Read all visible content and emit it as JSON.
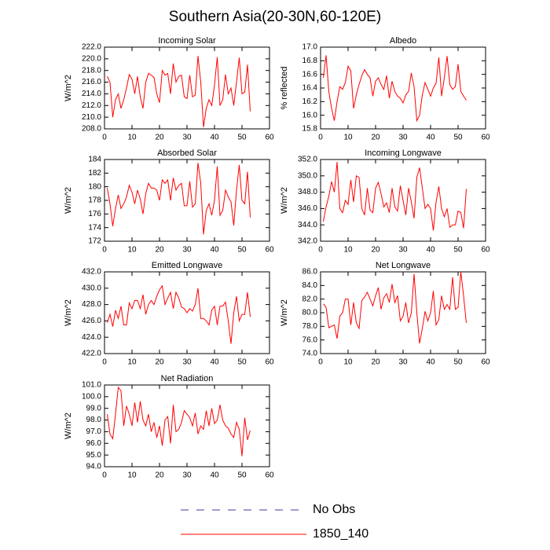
{
  "title": "Southern Asia(20-30N,60-120E)",
  "legend": [
    {
      "name": "No Obs",
      "color": "#3a3aa8",
      "dash": true
    },
    {
      "name": "1850_140",
      "color": "#ff0000",
      "dash": false
    }
  ],
  "chart_data": [
    {
      "type": "line",
      "title": "Incoming Solar",
      "ylabel": "W/m^2",
      "x": [
        1,
        2,
        3,
        4,
        5,
        6,
        7,
        8,
        9,
        10,
        11,
        12,
        13,
        14,
        15,
        16,
        17,
        18,
        19,
        20,
        21,
        22,
        23,
        24,
        25,
        26,
        27,
        28,
        29,
        30,
        31,
        32,
        33,
        34,
        35,
        36,
        37,
        38,
        39,
        40,
        41,
        42,
        43,
        44,
        45,
        46,
        47,
        48,
        49,
        50,
        51,
        52,
        53
      ],
      "values": [
        217.0,
        216.0,
        210.0,
        213.0,
        214.0,
        211.5,
        213.0,
        215.0,
        217.3,
        216.5,
        214.0,
        217.0,
        213.5,
        211.5,
        216.0,
        217.5,
        217.2,
        216.8,
        214.0,
        212.5,
        218.0,
        217.2,
        217.5,
        214.0,
        219.2,
        216.0,
        217.0,
        217.2,
        213.5,
        213.2,
        217.2,
        213.5,
        213.8,
        220.5,
        216.0,
        208.3,
        211.5,
        213.0,
        212.0,
        215.5,
        220.3,
        212.0,
        213.0,
        217.3,
        214.0,
        215.0,
        212.0,
        216.0,
        220.2,
        214.0,
        214.3,
        219.0,
        211.0
      ],
      "color": "#ff0000",
      "xlim": [
        0,
        60
      ],
      "xticks": [
        0,
        10,
        20,
        30,
        40,
        50,
        60
      ],
      "ylim": [
        208,
        222
      ],
      "yticks": [
        {
          "value": 208,
          "label": "208.0"
        },
        {
          "value": 210,
          "label": "210.0"
        },
        {
          "value": 212,
          "label": "212.0"
        },
        {
          "value": 214,
          "label": "214.0"
        },
        {
          "value": 216,
          "label": "216.0"
        },
        {
          "value": 218,
          "label": "218.0"
        },
        {
          "value": 220,
          "label": "220.0"
        },
        {
          "value": 222,
          "label": "222.0"
        }
      ]
    },
    {
      "type": "line",
      "title": "Albedo",
      "ylabel": "% reflected",
      "x": [
        1,
        2,
        3,
        4,
        5,
        6,
        7,
        8,
        9,
        10,
        11,
        12,
        13,
        14,
        15,
        16,
        17,
        18,
        19,
        20,
        21,
        22,
        23,
        24,
        25,
        26,
        27,
        28,
        29,
        30,
        31,
        32,
        33,
        34,
        35,
        36,
        37,
        38,
        39,
        40,
        41,
        42,
        43,
        44,
        45,
        46,
        47,
        48,
        49,
        50,
        51,
        52,
        53
      ],
      "values": [
        16.55,
        16.88,
        16.35,
        16.1,
        15.92,
        16.2,
        16.42,
        16.38,
        16.48,
        16.72,
        16.65,
        16.1,
        16.3,
        16.45,
        16.58,
        16.67,
        16.6,
        16.55,
        16.28,
        16.5,
        16.55,
        16.45,
        16.38,
        16.58,
        16.25,
        16.5,
        16.35,
        16.28,
        16.25,
        16.18,
        16.3,
        16.35,
        16.62,
        16.42,
        15.92,
        16.0,
        16.3,
        16.48,
        16.38,
        16.28,
        16.4,
        16.47,
        16.85,
        16.28,
        16.55,
        16.87,
        16.45,
        16.38,
        16.42,
        16.75,
        16.35,
        16.28,
        16.22
      ],
      "color": "#ff0000",
      "xlim": [
        0,
        60
      ],
      "xticks": [
        0,
        10,
        20,
        30,
        40,
        50,
        60
      ],
      "ylim": [
        15.8,
        17.0
      ],
      "yticks": [
        15.8,
        {
          "value": 16.0,
          "label": "16.0"
        },
        16.2,
        16.4,
        16.6,
        16.8,
        {
          "value": 17.0,
          "label": "17.0"
        }
      ]
    },
    {
      "type": "line",
      "title": "Absorbed Solar",
      "ylabel": "W/m^2",
      "x": [
        1,
        2,
        3,
        4,
        5,
        6,
        7,
        8,
        9,
        10,
        11,
        12,
        13,
        14,
        15,
        16,
        17,
        18,
        19,
        20,
        21,
        22,
        23,
        24,
        25,
        26,
        27,
        28,
        29,
        30,
        31,
        32,
        33,
        34,
        35,
        36,
        37,
        38,
        39,
        40,
        41,
        42,
        43,
        44,
        45,
        46,
        47,
        48,
        49,
        50,
        51,
        52,
        53
      ],
      "values": [
        179.8,
        177.5,
        174.2,
        176.8,
        178.8,
        176.8,
        177.5,
        178.5,
        180.2,
        179.2,
        177.5,
        179.5,
        178.2,
        176.0,
        179.0,
        180.5,
        179.8,
        179.8,
        179.5,
        178.0,
        181.0,
        180.5,
        181.0,
        178.0,
        181.3,
        179.5,
        180.2,
        180.5,
        177.2,
        177.2,
        180.8,
        177.0,
        177.5,
        183.5,
        180.5,
        173.0,
        176.5,
        177.5,
        175.8,
        178.0,
        183.0,
        175.8,
        176.5,
        179.5,
        178.5,
        177.8,
        174.3,
        179.5,
        183.2,
        178.0,
        177.5,
        182.2,
        175.5
      ],
      "color": "#ff0000",
      "xlim": [
        0,
        60
      ],
      "xticks": [
        0,
        10,
        20,
        30,
        40,
        50,
        60
      ],
      "ylim": [
        172,
        184
      ],
      "yticks": [
        172,
        174,
        176,
        178,
        180,
        182,
        184
      ]
    },
    {
      "type": "line",
      "title": "Incoming Longwave",
      "ylabel": "W/m^2",
      "x": [
        1,
        2,
        3,
        4,
        5,
        6,
        7,
        8,
        9,
        10,
        11,
        12,
        13,
        14,
        15,
        16,
        17,
        18,
        19,
        20,
        21,
        22,
        23,
        24,
        25,
        26,
        27,
        28,
        29,
        30,
        31,
        32,
        33,
        34,
        35,
        36,
        37,
        38,
        39,
        40,
        41,
        42,
        43,
        44,
        45,
        46,
        47,
        48,
        49,
        50,
        51,
        52,
        53
      ],
      "values": [
        344.4,
        346.2,
        347.5,
        349.3,
        348.0,
        351.7,
        346.0,
        345.5,
        347.0,
        346.5,
        349.5,
        346.8,
        350.0,
        349.8,
        346.0,
        345.2,
        348.5,
        345.8,
        345.5,
        348.5,
        349.2,
        347.8,
        346.2,
        346.7,
        345.5,
        348.5,
        346.2,
        345.7,
        348.8,
        347.0,
        345.2,
        348.5,
        346.8,
        344.8,
        349.8,
        351.0,
        348.5,
        346.0,
        346.5,
        346.0,
        343.3,
        346.8,
        348.7,
        346.0,
        345.0,
        346.0,
        343.7,
        344.0,
        344.0,
        345.7,
        345.5,
        343.6,
        348.4
      ],
      "color": "#ff0000",
      "xlim": [
        0,
        60
      ],
      "xticks": [
        0,
        10,
        20,
        30,
        40,
        50,
        60
      ],
      "ylim": [
        342,
        352
      ],
      "yticks": [
        {
          "value": 342,
          "label": "342.0"
        },
        {
          "value": 344,
          "label": "344.0"
        },
        {
          "value": 346,
          "label": "346.0"
        },
        {
          "value": 348,
          "label": "348.0"
        },
        {
          "value": 350,
          "label": "350.0"
        },
        {
          "value": 352,
          "label": "352.0"
        }
      ]
    },
    {
      "type": "line",
      "title": "Emitted Longwave",
      "ylabel": "W/m^2",
      "x": [
        1,
        2,
        3,
        4,
        5,
        6,
        7,
        8,
        9,
        10,
        11,
        12,
        13,
        14,
        15,
        16,
        17,
        18,
        19,
        20,
        21,
        22,
        23,
        24,
        25,
        26,
        27,
        28,
        29,
        30,
        31,
        32,
        33,
        34,
        35,
        36,
        37,
        38,
        39,
        40,
        41,
        42,
        43,
        44,
        45,
        46,
        47,
        48,
        49,
        50,
        51,
        52,
        53
      ],
      "values": [
        425.8,
        426.8,
        425.3,
        427.3,
        426.3,
        427.8,
        425.5,
        425.5,
        428.2,
        427.5,
        428.5,
        428.5,
        427.5,
        429.2,
        426.8,
        428.0,
        428.5,
        428.0,
        429.0,
        429.8,
        430.3,
        428.0,
        428.8,
        429.5,
        427.5,
        429.5,
        428.8,
        427.7,
        427.5,
        427.0,
        427.5,
        427.2,
        428.0,
        430.0,
        426.3,
        426.3,
        426.0,
        425.5,
        427.3,
        427.8,
        425.5,
        427.8,
        427.8,
        428.3,
        426.0,
        423.2,
        427.0,
        429.0,
        426.0,
        426.8,
        426.8,
        429.5,
        426.5
      ],
      "color": "#ff0000",
      "xlim": [
        0,
        60
      ],
      "xticks": [
        0,
        10,
        20,
        30,
        40,
        50,
        60
      ],
      "ylim": [
        422,
        432
      ],
      "yticks": [
        {
          "value": 422,
          "label": "422.0"
        },
        {
          "value": 424,
          "label": "424.0"
        },
        {
          "value": 426,
          "label": "426.0"
        },
        {
          "value": 428,
          "label": "428.0"
        },
        {
          "value": 430,
          "label": "430.0"
        },
        {
          "value": 432,
          "label": "432.0"
        }
      ]
    },
    {
      "type": "line",
      "title": "Net Longwave",
      "ylabel": "W/m^2",
      "x": [
        1,
        2,
        3,
        4,
        5,
        6,
        7,
        8,
        9,
        10,
        11,
        12,
        13,
        14,
        15,
        16,
        17,
        18,
        19,
        20,
        21,
        22,
        23,
        24,
        25,
        26,
        27,
        28,
        29,
        30,
        31,
        32,
        33,
        34,
        35,
        36,
        37,
        38,
        39,
        40,
        41,
        42,
        43,
        44,
        45,
        46,
        47,
        48,
        49,
        50,
        51,
        52,
        53
      ],
      "values": [
        81.3,
        80.8,
        77.8,
        78.0,
        78.2,
        76.2,
        79.5,
        80.0,
        82.0,
        82.0,
        78.2,
        81.5,
        78.5,
        77.7,
        81.8,
        82.3,
        83.0,
        82.0,
        81.0,
        82.5,
        83.7,
        80.5,
        82.2,
        82.8,
        81.5,
        84.2,
        81.5,
        82.5,
        78.8,
        79.5,
        81.5,
        78.5,
        80.0,
        85.7,
        80.0,
        75.5,
        77.7,
        80.2,
        78.8,
        80.0,
        83.2,
        78.2,
        79.0,
        82.5,
        80.5,
        81.2,
        80.5,
        85.2,
        80.5,
        80.8,
        86.0,
        82.5,
        78.5
      ],
      "color": "#ff0000",
      "xlim": [
        0,
        60
      ],
      "xticks": [
        0,
        10,
        20,
        30,
        40,
        50,
        60
      ],
      "ylim": [
        74,
        86
      ],
      "yticks": [
        {
          "value": 74,
          "label": "74.0"
        },
        {
          "value": 76,
          "label": "76.0"
        },
        {
          "value": 78,
          "label": "78.0"
        },
        {
          "value": 80,
          "label": "80.0"
        },
        {
          "value": 82,
          "label": "82.0"
        },
        {
          "value": 84,
          "label": "84.0"
        },
        {
          "value": 86,
          "label": "86.0"
        }
      ]
    },
    {
      "type": "line",
      "title": "Net Radiation",
      "ylabel": "W/m^2",
      "x": [
        1,
        2,
        3,
        4,
        5,
        6,
        7,
        8,
        9,
        10,
        11,
        12,
        13,
        14,
        15,
        16,
        17,
        18,
        19,
        20,
        21,
        22,
        23,
        24,
        25,
        26,
        27,
        28,
        29,
        30,
        31,
        32,
        33,
        34,
        35,
        36,
        37,
        38,
        39,
        40,
        41,
        42,
        43,
        44,
        45,
        46,
        47,
        48,
        49,
        50,
        51,
        52,
        53
      ],
      "values": [
        98.5,
        96.8,
        96.4,
        98.5,
        100.8,
        100.5,
        97.5,
        99.2,
        98.5,
        97.5,
        99.5,
        97.8,
        99.6,
        98.0,
        97.5,
        98.5,
        97.0,
        97.8,
        96.5,
        97.5,
        95.8,
        98.0,
        98.3,
        96.0,
        99.3,
        97.0,
        97.2,
        97.8,
        98.8,
        98.5,
        98.2,
        97.5,
        98.6,
        96.8,
        97.5,
        97.2,
        98.8,
        97.5,
        99.0,
        97.7,
        98.0,
        99.3,
        98.0,
        97.5,
        97.3,
        96.8,
        96.5,
        97.8,
        97.2,
        94.9,
        98.2,
        96.3,
        97.1
      ],
      "color": "#ff0000",
      "xlim": [
        0,
        60
      ],
      "xticks": [
        0,
        10,
        20,
        30,
        40,
        50,
        60
      ],
      "ylim": [
        94,
        101
      ],
      "yticks": [
        {
          "value": 94,
          "label": "94.0"
        },
        {
          "value": 95,
          "label": "95.0"
        },
        {
          "value": 96,
          "label": "96.0"
        },
        {
          "value": 97,
          "label": "97.0"
        },
        {
          "value": 98,
          "label": "98.0"
        },
        {
          "value": 99,
          "label": "99.0"
        },
        {
          "value": 100,
          "label": "100.0"
        },
        {
          "value": 101,
          "label": "101.0"
        }
      ]
    }
  ]
}
